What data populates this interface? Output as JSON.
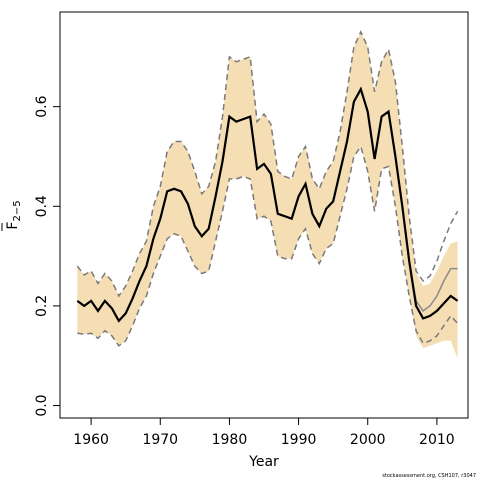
{
  "chart_data": {
    "type": "line",
    "xlabel": "Year",
    "ylabel_main": "F",
    "ylabel_sub": "2−5",
    "xlim": [
      1955.5,
      2014.5
    ],
    "ylim": [
      -0.025,
      0.79
    ],
    "xticks": [
      1960,
      1970,
      1980,
      1990,
      2000,
      2010
    ],
    "yticks": [
      0.0,
      0.2,
      0.4,
      0.6
    ],
    "ytick_labels": [
      "0.0",
      "0.2",
      "0.4",
      "0.6"
    ],
    "grid": false,
    "band_color": "#f5deb3",
    "x": [
      1958,
      1959,
      1960,
      1961,
      1962,
      1963,
      1964,
      1965,
      1966,
      1967,
      1968,
      1969,
      1970,
      1971,
      1972,
      1973,
      1974,
      1975,
      1976,
      1977,
      1978,
      1979,
      1980,
      1981,
      1982,
      1983,
      1984,
      1985,
      1986,
      1987,
      1988,
      1989,
      1990,
      1991,
      1992,
      1993,
      1994,
      1995,
      1996,
      1997,
      1998,
      1999,
      2000,
      2001,
      2002,
      2003,
      2004,
      2005,
      2006,
      2007,
      2008,
      2009,
      2010,
      2011,
      2012,
      2013
    ],
    "series": [
      {
        "role": "estimate",
        "values": [
          0.21,
          0.2,
          0.21,
          0.19,
          0.21,
          0.195,
          0.17,
          0.185,
          0.215,
          0.25,
          0.28,
          0.335,
          0.375,
          0.43,
          0.435,
          0.43,
          0.405,
          0.36,
          0.34,
          0.355,
          0.42,
          0.49,
          0.58,
          0.57,
          0.575,
          0.58,
          0.475,
          0.485,
          0.465,
          0.385,
          0.38,
          0.375,
          0.42,
          0.445,
          0.385,
          0.36,
          0.395,
          0.41,
          0.47,
          0.53,
          0.61,
          0.635,
          0.59,
          0.495,
          0.58,
          0.59,
          0.5,
          0.4,
          0.29,
          0.2,
          0.175,
          0.18,
          0.19,
          0.205,
          0.22,
          0.21
        ]
      },
      {
        "role": "upper-bound",
        "values": [
          0.28,
          0.262,
          0.27,
          0.245,
          0.265,
          0.25,
          0.22,
          0.24,
          0.27,
          0.305,
          0.33,
          0.4,
          0.44,
          0.51,
          0.53,
          0.53,
          0.51,
          0.47,
          0.425,
          0.44,
          0.49,
          0.58,
          0.7,
          0.69,
          0.695,
          0.7,
          0.57,
          0.585,
          0.565,
          0.47,
          0.46,
          0.455,
          0.5,
          0.52,
          0.455,
          0.435,
          0.47,
          0.49,
          0.55,
          0.63,
          0.72,
          0.75,
          0.72,
          0.63,
          0.69,
          0.715,
          0.65,
          0.52,
          0.38,
          0.27,
          0.25,
          0.26,
          0.29,
          0.33,
          0.365,
          0.39
        ]
      },
      {
        "role": "lower-bound",
        "values": [
          0.145,
          0.143,
          0.145,
          0.135,
          0.15,
          0.14,
          0.12,
          0.13,
          0.16,
          0.195,
          0.22,
          0.265,
          0.3,
          0.335,
          0.345,
          0.34,
          0.31,
          0.28,
          0.265,
          0.27,
          0.33,
          0.39,
          0.455,
          0.455,
          0.46,
          0.455,
          0.375,
          0.38,
          0.37,
          0.3,
          0.295,
          0.295,
          0.335,
          0.355,
          0.305,
          0.285,
          0.315,
          0.325,
          0.38,
          0.435,
          0.5,
          0.52,
          0.47,
          0.39,
          0.475,
          0.48,
          0.4,
          0.3,
          0.22,
          0.15,
          0.125,
          0.13,
          0.14,
          0.16,
          0.18,
          0.165
        ]
      },
      {
        "role": "band-upper",
        "values": [
          0.28,
          0.262,
          0.27,
          0.245,
          0.265,
          0.25,
          0.22,
          0.24,
          0.27,
          0.305,
          0.33,
          0.4,
          0.44,
          0.51,
          0.53,
          0.53,
          0.51,
          0.47,
          0.425,
          0.44,
          0.49,
          0.58,
          0.7,
          0.69,
          0.695,
          0.7,
          0.57,
          0.585,
          0.565,
          0.47,
          0.46,
          0.455,
          0.5,
          0.52,
          0.455,
          0.435,
          0.47,
          0.49,
          0.55,
          0.63,
          0.72,
          0.75,
          0.72,
          0.63,
          0.69,
          0.715,
          0.65,
          0.52,
          0.38,
          0.265,
          0.24,
          0.245,
          0.27,
          0.3,
          0.325,
          0.33
        ]
      },
      {
        "role": "band-lower",
        "values": [
          0.145,
          0.143,
          0.145,
          0.135,
          0.15,
          0.14,
          0.12,
          0.13,
          0.16,
          0.195,
          0.22,
          0.265,
          0.3,
          0.335,
          0.345,
          0.34,
          0.31,
          0.28,
          0.265,
          0.27,
          0.33,
          0.39,
          0.455,
          0.455,
          0.46,
          0.455,
          0.375,
          0.38,
          0.37,
          0.3,
          0.295,
          0.295,
          0.335,
          0.355,
          0.305,
          0.285,
          0.315,
          0.325,
          0.38,
          0.435,
          0.5,
          0.52,
          0.47,
          0.39,
          0.475,
          0.48,
          0.4,
          0.3,
          0.22,
          0.14,
          0.115,
          0.12,
          0.125,
          0.13,
          0.13,
          0.095
        ]
      },
      {
        "role": "alternate-estimate",
        "values": [
          0.21,
          0.2,
          0.21,
          0.19,
          0.21,
          0.195,
          0.17,
          0.185,
          0.215,
          0.25,
          0.28,
          0.335,
          0.375,
          0.43,
          0.435,
          0.43,
          0.405,
          0.36,
          0.34,
          0.355,
          0.42,
          0.49,
          0.58,
          0.57,
          0.575,
          0.58,
          0.475,
          0.485,
          0.465,
          0.385,
          0.38,
          0.375,
          0.42,
          0.445,
          0.385,
          0.36,
          0.395,
          0.41,
          0.47,
          0.53,
          0.61,
          0.635,
          0.59,
          0.495,
          0.58,
          0.59,
          0.5,
          0.4,
          0.29,
          0.21,
          0.19,
          0.2,
          0.22,
          0.25,
          0.275,
          0.275
        ]
      }
    ],
    "credit": "stockassessment.org, CSH107, r3047"
  }
}
